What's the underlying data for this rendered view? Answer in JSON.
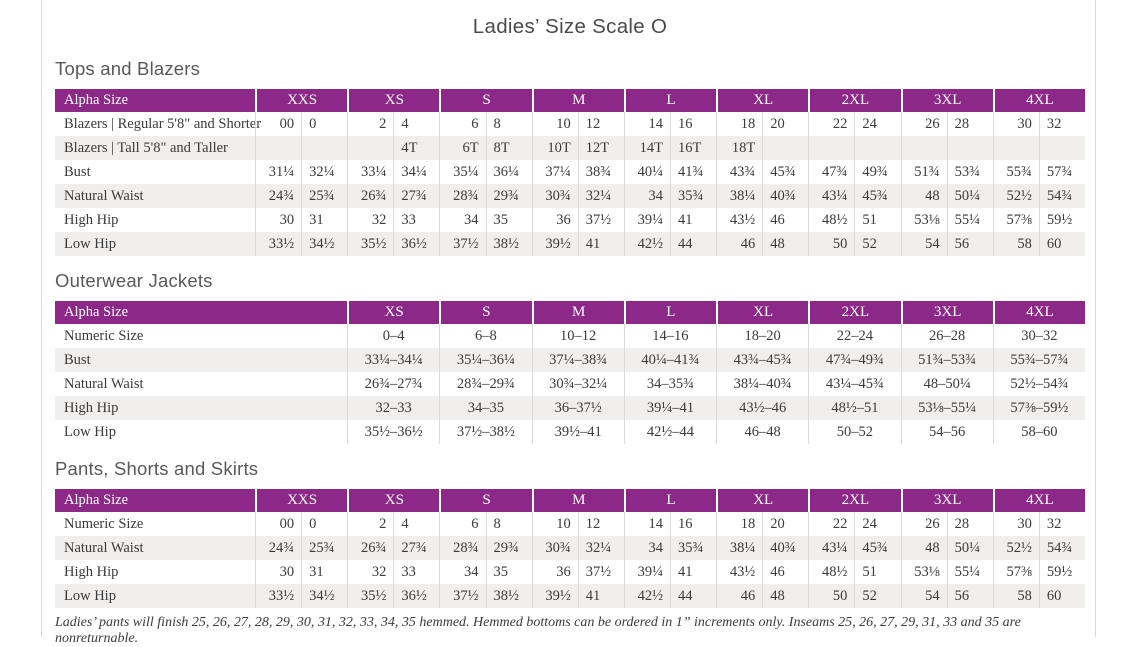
{
  "page": {
    "title": "Ladies’ Size Scale O",
    "footnote": "Ladies’ pants will finish 25, 26, 27, 28, 29, 30, 31, 32, 33, 34, 35 hemmed. Hemmed bottoms can be ordered in 1” increments only. Inseams 25, 26, 27, 29, 31, 33 and 35 are nonreturnable."
  },
  "colors": {
    "accent_purple": "#8c2887",
    "row_stripe": "#f1efed",
    "grid_line": "#dcdad8",
    "heading_gray": "#595959",
    "title_gray": "#4b4b4b",
    "text_dark": "#3a3a3a"
  },
  "tables": [
    {
      "id": "tops-and-blazers",
      "section_title": "Tops and Blazers",
      "header_label": "Alpha Size",
      "layout": "paired",
      "sizes": [
        "XXS",
        "XS",
        "S",
        "M",
        "L",
        "XL",
        "2XL",
        "3XL",
        "4XL"
      ],
      "rows": [
        {
          "label": "Blazers | Regular 5'8\" and Shorter",
          "values": [
            [
              "00",
              "0"
            ],
            [
              "2",
              "4"
            ],
            [
              "6",
              "8"
            ],
            [
              "10",
              "12"
            ],
            [
              "14",
              "16"
            ],
            [
              "18",
              "20"
            ],
            [
              "22",
              "24"
            ],
            [
              "26",
              "28"
            ],
            [
              "30",
              "32"
            ]
          ]
        },
        {
          "label": "Blazers | Tall 5'8\" and Taller",
          "values": [
            [
              "",
              ""
            ],
            [
              "",
              "4T"
            ],
            [
              "6T",
              "8T"
            ],
            [
              "10T",
              "12T"
            ],
            [
              "14T",
              "16T"
            ],
            [
              "18T",
              ""
            ],
            [
              "",
              ""
            ],
            [
              "",
              ""
            ],
            [
              "",
              ""
            ]
          ]
        },
        {
          "label": "Bust",
          "values": [
            [
              "31¼",
              "32¼"
            ],
            [
              "33¼",
              "34¼"
            ],
            [
              "35¼",
              "36¼"
            ],
            [
              "37¼",
              "38¾"
            ],
            [
              "40¼",
              "41¾"
            ],
            [
              "43¾",
              "45¾"
            ],
            [
              "47¾",
              "49¾"
            ],
            [
              "51¾",
              "53¾"
            ],
            [
              "55¾",
              "57¾"
            ]
          ]
        },
        {
          "label": "Natural Waist",
          "values": [
            [
              "24¾",
              "25¾"
            ],
            [
              "26¾",
              "27¾"
            ],
            [
              "28¾",
              "29¾"
            ],
            [
              "30¾",
              "32¼"
            ],
            [
              "34",
              "35¾"
            ],
            [
              "38¼",
              "40¾"
            ],
            [
              "43¼",
              "45¾"
            ],
            [
              "48",
              "50¼"
            ],
            [
              "52½",
              "54¾"
            ]
          ]
        },
        {
          "label": "High Hip",
          "values": [
            [
              "30",
              "31"
            ],
            [
              "32",
              "33"
            ],
            [
              "34",
              "35"
            ],
            [
              "36",
              "37½"
            ],
            [
              "39¼",
              "41"
            ],
            [
              "43½",
              "46"
            ],
            [
              "48½",
              "51"
            ],
            [
              "53⅛",
              "55¼"
            ],
            [
              "57⅜",
              "59½"
            ]
          ]
        },
        {
          "label": "Low Hip",
          "values": [
            [
              "33½",
              "34½"
            ],
            [
              "35½",
              "36½"
            ],
            [
              "37½",
              "38½"
            ],
            [
              "39½",
              "41"
            ],
            [
              "42½",
              "44"
            ],
            [
              "46",
              "48"
            ],
            [
              "50",
              "52"
            ],
            [
              "54",
              "56"
            ],
            [
              "58",
              "60"
            ]
          ]
        }
      ]
    },
    {
      "id": "outerwear-jackets",
      "section_title": "Outerwear Jackets",
      "header_label": "Alpha Size",
      "layout": "single",
      "sizes": [
        "XS",
        "S",
        "M",
        "L",
        "XL",
        "2XL",
        "3XL",
        "4XL"
      ],
      "rows": [
        {
          "label": "Numeric Size",
          "values": [
            "0–4",
            "6–8",
            "10–12",
            "14–16",
            "18–20",
            "22–24",
            "26–28",
            "30–32"
          ]
        },
        {
          "label": "Bust",
          "values": [
            "33¼–34¼",
            "35¼–36¼",
            "37¼–38¾",
            "40¼–41¾",
            "43¾–45¾",
            "47¾–49¾",
            "51¾–53¾",
            "55¾–57¾"
          ]
        },
        {
          "label": "Natural Waist",
          "values": [
            "26¾–27¾",
            "28¾–29¾",
            "30¾–32¼",
            "34–35¾",
            "38¼–40¾",
            "43¼–45¾",
            "48–50¼",
            "52½–54¾"
          ]
        },
        {
          "label": "High Hip",
          "values": [
            "32–33",
            "34–35",
            "36–37½",
            "39¼–41",
            "43½–46",
            "48½–51",
            "53⅛–55¼",
            "57⅜–59½"
          ]
        },
        {
          "label": "Low Hip",
          "values": [
            "35½–36½",
            "37½–38½",
            "39½–41",
            "42½–44",
            "46–48",
            "50–52",
            "54–56",
            "58–60"
          ]
        }
      ]
    },
    {
      "id": "pants-shorts-and-skirts",
      "section_title": "Pants, Shorts and Skirts",
      "header_label": "Alpha Size",
      "layout": "paired",
      "sizes": [
        "XXS",
        "XS",
        "S",
        "M",
        "L",
        "XL",
        "2XL",
        "3XL",
        "4XL"
      ],
      "rows": [
        {
          "label": "Numeric Size",
          "values": [
            [
              "00",
              "0"
            ],
            [
              "2",
              "4"
            ],
            [
              "6",
              "8"
            ],
            [
              "10",
              "12"
            ],
            [
              "14",
              "16"
            ],
            [
              "18",
              "20"
            ],
            [
              "22",
              "24"
            ],
            [
              "26",
              "28"
            ],
            [
              "30",
              "32"
            ]
          ]
        },
        {
          "label": "Natural Waist",
          "values": [
            [
              "24¾",
              "25¾"
            ],
            [
              "26¾",
              "27¾"
            ],
            [
              "28¾",
              "29¾"
            ],
            [
              "30¾",
              "32¼"
            ],
            [
              "34",
              "35¾"
            ],
            [
              "38¼",
              "40¾"
            ],
            [
              "43¼",
              "45¾"
            ],
            [
              "48",
              "50¼"
            ],
            [
              "52½",
              "54¾"
            ]
          ]
        },
        {
          "label": "High Hip",
          "values": [
            [
              "30",
              "31"
            ],
            [
              "32",
              "33"
            ],
            [
              "34",
              "35"
            ],
            [
              "36",
              "37½"
            ],
            [
              "39¼",
              "41"
            ],
            [
              "43½",
              "46"
            ],
            [
              "48½",
              "51"
            ],
            [
              "53⅛",
              "55¼"
            ],
            [
              "57⅜",
              "59½"
            ]
          ]
        },
        {
          "label": "Low Hip",
          "values": [
            [
              "33½",
              "34½"
            ],
            [
              "35½",
              "36½"
            ],
            [
              "37½",
              "38½"
            ],
            [
              "39½",
              "41"
            ],
            [
              "42½",
              "44"
            ],
            [
              "46",
              "48"
            ],
            [
              "50",
              "52"
            ],
            [
              "54",
              "56"
            ],
            [
              "58",
              "60"
            ]
          ]
        }
      ]
    }
  ]
}
